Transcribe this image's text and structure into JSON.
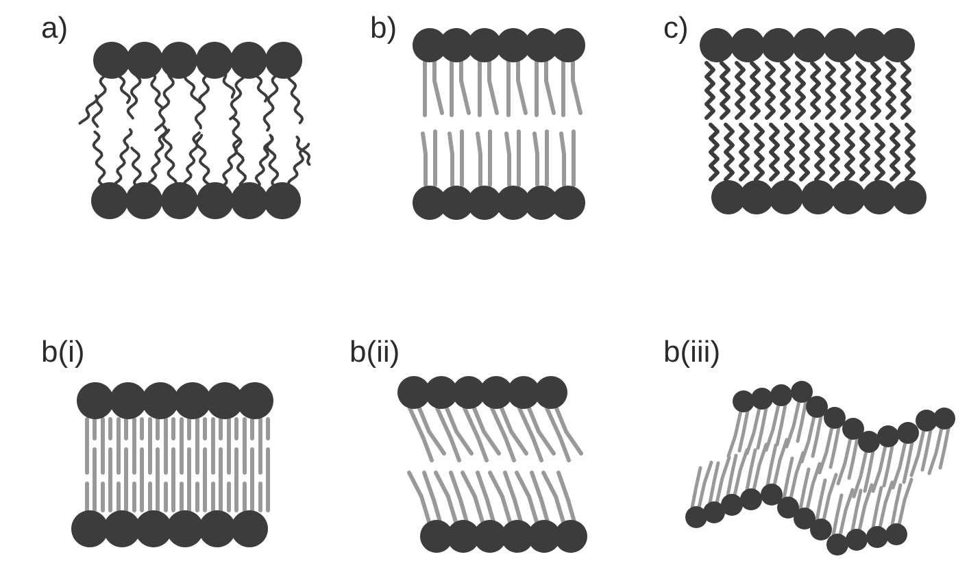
{
  "colors": {
    "head": "#3c3c3c",
    "dark_tail": "#3c3c3c",
    "light_tail": "#999999",
    "label": "#2b2b2b",
    "background": "#ffffff"
  },
  "panels": [
    {
      "id": "a",
      "label": "a)",
      "tail_style": "disordered-wavy"
    },
    {
      "id": "b",
      "label": "b)",
      "tail_style": "ordered-straight"
    },
    {
      "id": "c",
      "label": "c)",
      "tail_style": "dense-zigzag"
    },
    {
      "id": "b-i",
      "label": "b(i)",
      "tail_style": "interdigitated"
    },
    {
      "id": "b-ii",
      "label": "b(ii)",
      "tail_style": "tilted"
    },
    {
      "id": "b-iii",
      "label": "b(iii)",
      "tail_style": "rippled"
    }
  ]
}
